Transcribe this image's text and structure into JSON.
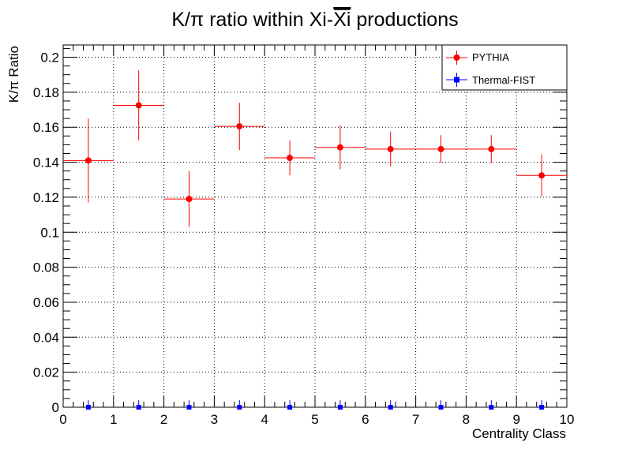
{
  "chart_data": {
    "type": "scatter",
    "title": "K/π ratio within Xi-Ξi productions",
    "title_parts": {
      "prefix": "K/π ratio within Xi-",
      "overlined": "Xi",
      "suffix": " productions"
    },
    "xlabel": "Centrality Class",
    "ylabel": "K/π Ratio",
    "xlim": [
      0,
      10
    ],
    "ylim": [
      0,
      0.207
    ],
    "x_ticks": [
      "0",
      "1",
      "2",
      "3",
      "4",
      "5",
      "6",
      "7",
      "8",
      "9",
      "10"
    ],
    "y_ticks": [
      "0",
      "0.02",
      "0.04",
      "0.06",
      "0.08",
      "0.1",
      "0.12",
      "0.14",
      "0.16",
      "0.18",
      "0.2"
    ],
    "grid": true,
    "legend_position": "top-right",
    "series": [
      {
        "name": "PYTHIA",
        "color": "#ff0000",
        "marker": "circle",
        "x": [
          0.5,
          1.5,
          2.5,
          3.5,
          4.5,
          5.5,
          6.5,
          7.5,
          8.5,
          9.5
        ],
        "x_err": [
          0.5,
          0.5,
          0.5,
          0.5,
          0.5,
          0.5,
          0.5,
          0.5,
          0.5,
          0.5
        ],
        "y": [
          0.141,
          0.1725,
          0.119,
          0.1605,
          0.1425,
          0.1485,
          0.1475,
          0.1475,
          0.1475,
          0.1325
        ],
        "y_err": [
          0.024,
          0.02,
          0.016,
          0.0135,
          0.01,
          0.0125,
          0.01,
          0.008,
          0.008,
          0.012
        ]
      },
      {
        "name": "Thermal-FIST",
        "color": "#0000ff",
        "marker": "square",
        "x": [
          0.5,
          1.5,
          2.5,
          3.5,
          4.5,
          5.5,
          6.5,
          7.5,
          8.5,
          9.5
        ],
        "y": [
          0,
          0,
          0,
          0,
          0,
          0,
          0,
          0,
          0,
          0
        ],
        "y_err": [
          0.004,
          0.004,
          0.004,
          0.004,
          0.004,
          0.004,
          0.004,
          0.004,
          0.004,
          0.004
        ]
      }
    ]
  }
}
